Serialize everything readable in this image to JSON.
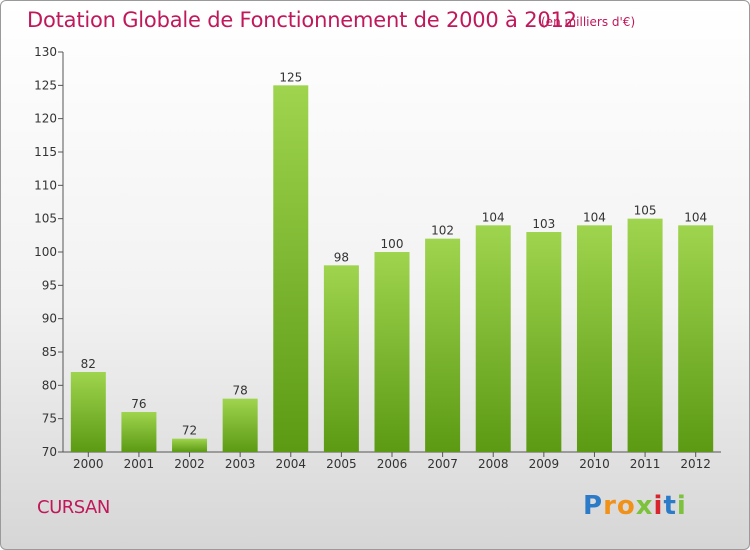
{
  "header": {
    "title": "Dotation Globale de Fonctionnement de 2000 à 2012",
    "unit": "(en milliers d'€)"
  },
  "footer": {
    "commune": "CURSAN",
    "logo_letters": [
      "P",
      "r",
      "o",
      "x",
      "i",
      "t",
      "i"
    ]
  },
  "colors": {
    "title": "#c0185a",
    "bar_light": "#9fd44e",
    "bar_dark": "#5c9a14",
    "logo": [
      "#2b7bc8",
      "#f0921a",
      "#f0921a",
      "#7cc23c",
      "#d8242d",
      "#2b7bc8",
      "#7cc23c"
    ]
  },
  "chart_data": {
    "type": "bar",
    "title": "Dotation Globale de Fonctionnement de 2000 à 2012",
    "categories": [
      "2000",
      "2001",
      "2002",
      "2003",
      "2004",
      "2005",
      "2006",
      "2007",
      "2008",
      "2009",
      "2010",
      "2011",
      "2012"
    ],
    "values": [
      82,
      76,
      72,
      78,
      125,
      98,
      100,
      102,
      104,
      103,
      104,
      105,
      104
    ],
    "ylim": [
      70,
      130
    ],
    "yticks": [
      70,
      75,
      80,
      85,
      90,
      95,
      100,
      105,
      110,
      115,
      120,
      125,
      130
    ],
    "grid": false,
    "legend": "none"
  }
}
